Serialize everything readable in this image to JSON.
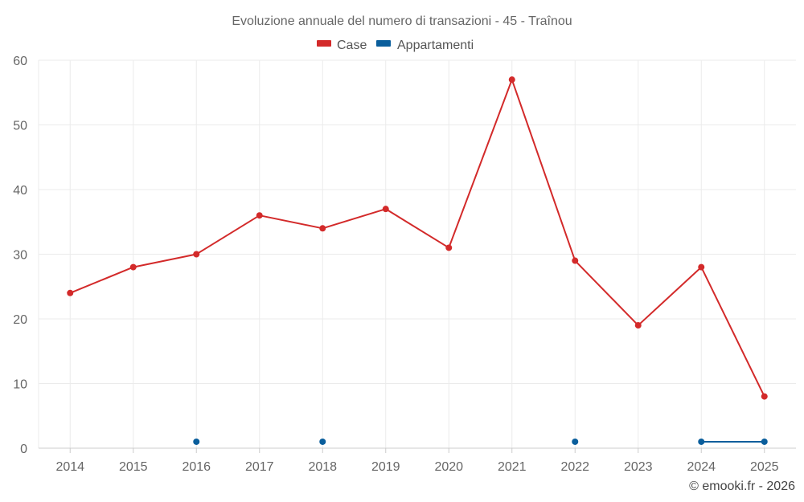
{
  "chart_data": {
    "type": "line",
    "title": "Evoluzione annuale del numero di transazioni - 45 - Traînou",
    "xlabel": "",
    "ylabel": "",
    "ylim": [
      0,
      60
    ],
    "yticks": [
      "0",
      "10",
      "20",
      "30",
      "40",
      "50",
      "60"
    ],
    "categories": [
      "2014",
      "2015",
      "2016",
      "2017",
      "2018",
      "2019",
      "2020",
      "2021",
      "2022",
      "2023",
      "2024",
      "2025"
    ],
    "legend_position": "top-center",
    "grid": true,
    "series": [
      {
        "name": "Case",
        "color": "#d32a2a",
        "values": [
          24,
          28,
          30,
          36,
          34,
          37,
          31,
          57,
          29,
          19,
          28,
          8
        ]
      },
      {
        "name": "Appartamenti",
        "color": "#0a5e9c",
        "values": [
          null,
          null,
          1,
          null,
          1,
          null,
          null,
          null,
          1,
          null,
          1,
          1
        ]
      }
    ],
    "credit": "© emooki.fr - 2026"
  }
}
